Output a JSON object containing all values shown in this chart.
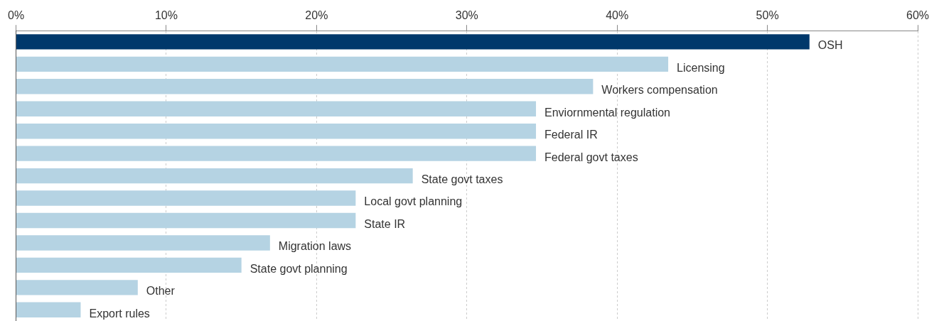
{
  "chart_data": {
    "type": "bar",
    "orientation": "horizontal",
    "categories": [
      "OSH",
      "Licensing",
      "Workers compensation",
      "Enviornmental regulation",
      "Federal IR",
      "Federal govt taxes",
      "State govt taxes",
      "Local govt planning",
      "State IR",
      "Migration laws",
      "State govt planning",
      "Other",
      "Export rules"
    ],
    "values": [
      52.8,
      43.4,
      38.4,
      34.6,
      34.6,
      34.6,
      26.4,
      22.6,
      22.6,
      16.9,
      15.0,
      8.1,
      4.3
    ],
    "colors": [
      "#00386b",
      "#b5d3e3",
      "#b5d3e3",
      "#b5d3e3",
      "#b5d3e3",
      "#b5d3e3",
      "#b5d3e3",
      "#b5d3e3",
      "#b5d3e3",
      "#b5d3e3",
      "#b5d3e3",
      "#b5d3e3",
      "#b5d3e3"
    ],
    "xlim": [
      0,
      60
    ],
    "xticks": [
      {
        "value": 0,
        "label": "0%"
      },
      {
        "value": 10,
        "label": "10%"
      },
      {
        "value": 20,
        "label": "20%"
      },
      {
        "value": 30,
        "label": "30%"
      },
      {
        "value": 40,
        "label": "40%"
      },
      {
        "value": 50,
        "label": "50%"
      },
      {
        "value": 60,
        "label": "60%"
      }
    ],
    "grid": "x"
  }
}
